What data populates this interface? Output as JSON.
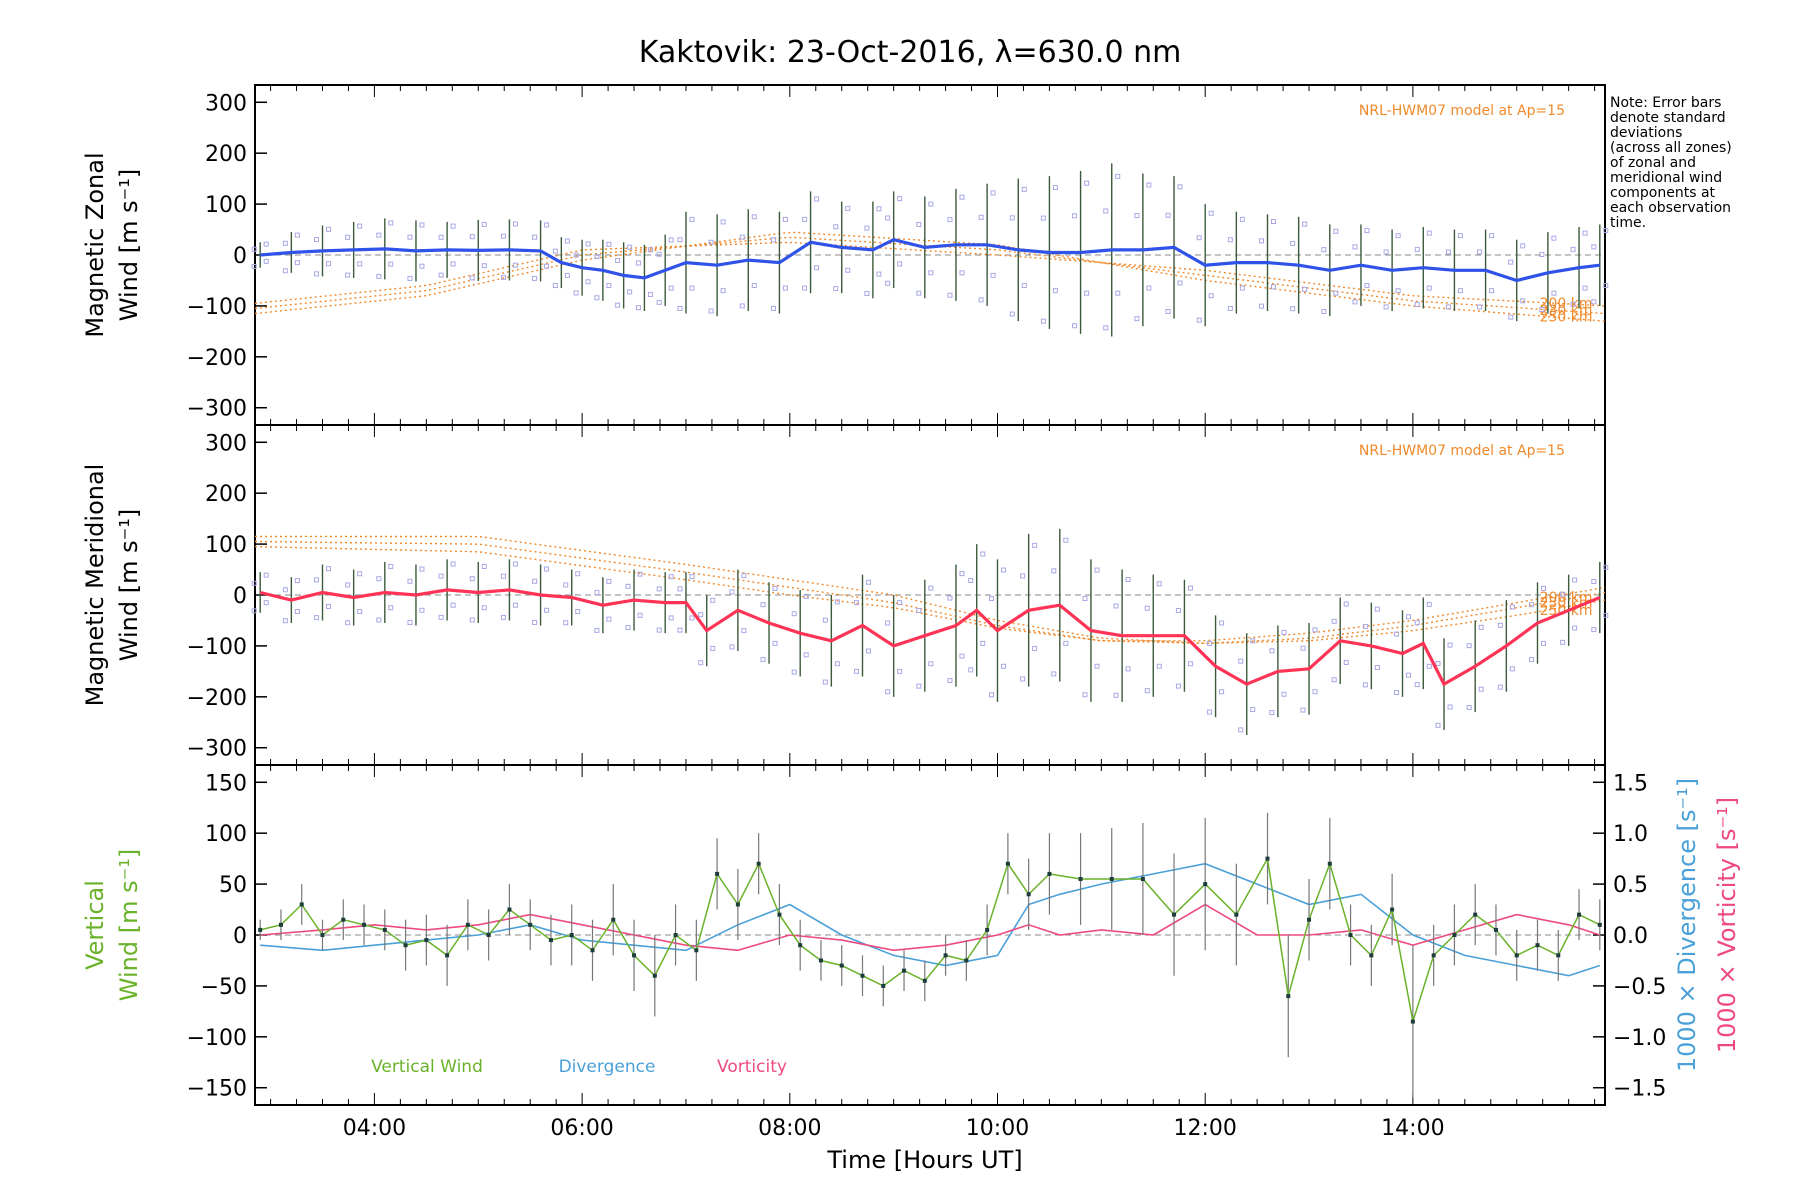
{
  "title": "Kaktovik: 23-Oct-2016, λ=630.0 nm",
  "note": [
    "Note: Error bars",
    "denote standard",
    "deviations",
    "(across all zones)",
    "of zonal and",
    "meridional wind",
    "components at",
    "each observation",
    "time."
  ],
  "colors": {
    "zonal": "#2f52e8",
    "zonal_light": "#4aa0e6",
    "meridional": "#ff3355",
    "model": "#f08a2c",
    "scatter": "#a8a8e8",
    "vertical": "#6ab22a",
    "divergence": "#4aa0d8",
    "vorticity": "#ee4a80",
    "errorbar": "#777777"
  },
  "chart_data": [
    {
      "type": "line",
      "panel": "zonal",
      "ylabel_lines": [
        "Magnetic Zonal",
        "Wind [m s⁻¹]"
      ],
      "annotation": "NRL-HWM07 model at Ap=15",
      "model_height_labels": [
        "250 km",
        "230 km",
        "200 km"
      ],
      "x_range": [
        2.85,
        15.85
      ],
      "ylim": [
        -330,
        330
      ],
      "yticks": [
        300,
        200,
        100,
        0,
        -100,
        -200,
        -300
      ],
      "series": [
        {
          "role": "measured",
          "x": [
            2.9,
            3.2,
            3.5,
            3.8,
            4.1,
            4.4,
            4.7,
            5.0,
            5.3,
            5.6,
            5.8,
            6.0,
            6.2,
            6.4,
            6.6,
            6.8,
            7.0,
            7.3,
            7.6,
            7.9,
            8.2,
            8.5,
            8.8,
            9.0,
            9.3,
            9.6,
            9.9,
            10.2,
            10.5,
            10.8,
            11.1,
            11.4,
            11.7,
            12.0,
            12.3,
            12.6,
            12.9,
            13.2,
            13.5,
            13.8,
            14.1,
            14.4,
            14.7,
            15.0,
            15.3,
            15.6,
            15.8
          ],
          "y": [
            0,
            5,
            8,
            10,
            12,
            8,
            10,
            9,
            10,
            8,
            -15,
            -25,
            -30,
            -40,
            -45,
            -30,
            -15,
            -20,
            -10,
            -15,
            25,
            15,
            10,
            30,
            15,
            20,
            20,
            10,
            5,
            5,
            10,
            10,
            15,
            -20,
            -15,
            -15,
            -20,
            -30,
            -20,
            -30,
            -25,
            -30,
            -30,
            -50,
            -35,
            -25,
            -20
          ],
          "err": [
            25,
            40,
            50,
            55,
            60,
            60,
            55,
            60,
            60,
            60,
            50,
            55,
            60,
            65,
            65,
            70,
            100,
            100,
            100,
            100,
            100,
            90,
            95,
            95,
            100,
            110,
            120,
            140,
            150,
            160,
            170,
            150,
            140,
            120,
            100,
            95,
            95,
            90,
            80,
            80,
            80,
            80,
            80,
            80,
            80,
            80,
            80
          ]
        }
      ],
      "model": [
        {
          "x": [
            2.85,
            4.5,
            6.0,
            8.0,
            10.0,
            12.0,
            14.0,
            15.85
          ],
          "y": [
            -115,
            -80,
            -10,
            45,
            20,
            -50,
            -100,
            -130
          ]
        },
        {
          "x": [
            2.85,
            4.5,
            6.0,
            8.0,
            10.0,
            12.0,
            14.0,
            15.85
          ],
          "y": [
            -105,
            -70,
            0,
            35,
            10,
            -40,
            -90,
            -115
          ]
        },
        {
          "x": [
            2.85,
            4.5,
            6.0,
            8.0,
            10.0,
            12.0,
            14.0,
            15.85
          ],
          "y": [
            -95,
            -60,
            10,
            25,
            0,
            -30,
            -80,
            -100
          ]
        }
      ]
    },
    {
      "type": "line",
      "panel": "meridional",
      "ylabel_lines": [
        "Magnetic Meridional",
        "Wind [m s⁻¹]"
      ],
      "annotation": "NRL-HWM07 model at Ap=15",
      "model_height_labels": [
        "250 km",
        "230 km",
        "200 km"
      ],
      "x_range": [
        2.85,
        15.85
      ],
      "ylim": [
        -330,
        330
      ],
      "yticks": [
        300,
        200,
        100,
        0,
        -100,
        -200,
        -300
      ],
      "series": [
        {
          "role": "measured",
          "x": [
            2.9,
            3.2,
            3.5,
            3.8,
            4.1,
            4.4,
            4.7,
            5.0,
            5.3,
            5.6,
            5.9,
            6.2,
            6.5,
            6.8,
            7.0,
            7.2,
            7.5,
            7.8,
            8.1,
            8.4,
            8.7,
            9.0,
            9.3,
            9.6,
            9.8,
            10.0,
            10.3,
            10.6,
            10.9,
            11.2,
            11.5,
            11.8,
            12.1,
            12.4,
            12.7,
            13.0,
            13.3,
            13.6,
            13.9,
            14.1,
            14.3,
            14.6,
            14.9,
            15.2,
            15.5,
            15.8
          ],
          "y": [
            5,
            -10,
            5,
            -5,
            5,
            0,
            10,
            5,
            10,
            0,
            -5,
            -20,
            -10,
            -15,
            -15,
            -70,
            -30,
            -55,
            -75,
            -90,
            -60,
            -100,
            -80,
            -60,
            -30,
            -70,
            -30,
            -20,
            -70,
            -80,
            -80,
            -80,
            -140,
            -175,
            -150,
            -145,
            -90,
            -100,
            -115,
            -95,
            -175,
            -140,
            -100,
            -55,
            -30,
            -5
          ],
          "err": [
            40,
            45,
            55,
            55,
            60,
            60,
            60,
            60,
            60,
            60,
            55,
            55,
            60,
            60,
            60,
            70,
            80,
            80,
            85,
            90,
            100,
            100,
            110,
            120,
            130,
            140,
            150,
            150,
            140,
            130,
            120,
            110,
            100,
            100,
            90,
            90,
            85,
            85,
            85,
            90,
            90,
            90,
            90,
            80,
            70,
            70
          ]
        }
      ],
      "model": [
        {
          "x": [
            2.85,
            5.0,
            7.0,
            8.0,
            9.0,
            10.0,
            11.0,
            12.0,
            13.0,
            14.0,
            15.0,
            15.85
          ],
          "y": [
            115,
            115,
            60,
            30,
            0,
            -50,
            -85,
            -95,
            -90,
            -70,
            -40,
            -10
          ]
        },
        {
          "x": [
            2.85,
            5.0,
            7.0,
            8.0,
            9.0,
            10.0,
            11.0,
            12.0,
            13.0,
            14.0,
            15.0,
            15.85
          ],
          "y": [
            105,
            100,
            45,
            15,
            -15,
            -60,
            -90,
            -95,
            -85,
            -60,
            -25,
            5
          ]
        },
        {
          "x": [
            2.85,
            5.0,
            7.0,
            8.0,
            9.0,
            10.0,
            11.0,
            12.0,
            13.0,
            14.0,
            15.0,
            15.85
          ],
          "y": [
            95,
            85,
            30,
            0,
            -25,
            -65,
            -90,
            -90,
            -75,
            -50,
            -15,
            15
          ]
        }
      ]
    },
    {
      "type": "line",
      "panel": "vertical",
      "ylabel_lines": [
        "Vertical",
        "Wind [m s⁻¹]"
      ],
      "right_labels": [
        "1000 × Divergence [s⁻¹]",
        "1000 × Vorticity [s⁻¹]"
      ],
      "xlabel": "Time [Hours UT]",
      "x_range": [
        2.85,
        15.85
      ],
      "ylim": [
        -165,
        165
      ],
      "yticks": [
        150,
        100,
        50,
        0,
        -50,
        -100,
        -150
      ],
      "y2lim": [
        -1.65,
        1.65
      ],
      "y2ticks": [
        1.5,
        1.0,
        0.5,
        0.0,
        -0.5,
        -1.0,
        -1.5
      ],
      "xticks": [
        "04:00",
        "06:00",
        "08:00",
        "10:00",
        "12:00",
        "14:00"
      ],
      "xtick_values": [
        4,
        6,
        8,
        10,
        12,
        14
      ],
      "legend": [
        "Vertical Wind",
        "Divergence",
        "Vorticity"
      ],
      "series": [
        {
          "name": "Vertical Wind",
          "x": [
            2.9,
            3.1,
            3.3,
            3.5,
            3.7,
            3.9,
            4.1,
            4.3,
            4.5,
            4.7,
            4.9,
            5.1,
            5.3,
            5.5,
            5.7,
            5.9,
            6.1,
            6.3,
            6.5,
            6.7,
            6.9,
            7.1,
            7.3,
            7.5,
            7.7,
            7.9,
            8.1,
            8.3,
            8.5,
            8.7,
            8.9,
            9.1,
            9.3,
            9.5,
            9.7,
            9.9,
            10.1,
            10.3,
            10.5,
            10.8,
            11.1,
            11.4,
            11.7,
            12.0,
            12.3,
            12.6,
            12.8,
            13.0,
            13.2,
            13.4,
            13.6,
            13.8,
            14.0,
            14.2,
            14.4,
            14.6,
            14.8,
            15.0,
            15.2,
            15.4,
            15.6,
            15.8
          ],
          "y": [
            5,
            10,
            30,
            0,
            15,
            10,
            5,
            -10,
            -5,
            -20,
            10,
            0,
            25,
            10,
            -5,
            0,
            -15,
            15,
            -20,
            -40,
            0,
            -15,
            60,
            30,
            70,
            20,
            -10,
            -25,
            -30,
            -40,
            -50,
            -35,
            -45,
            -20,
            -25,
            5,
            70,
            40,
            60,
            55,
            55,
            55,
            20,
            50,
            20,
            75,
            -60,
            15,
            70,
            0,
            -20,
            25,
            -85,
            -20,
            0,
            20,
            5,
            -20,
            -10,
            -20,
            20,
            10
          ],
          "err": [
            10,
            15,
            20,
            15,
            20,
            20,
            20,
            25,
            25,
            30,
            25,
            25,
            25,
            25,
            25,
            30,
            30,
            35,
            35,
            40,
            30,
            30,
            35,
            35,
            30,
            30,
            25,
            20,
            20,
            20,
            20,
            20,
            20,
            20,
            20,
            25,
            30,
            35,
            40,
            45,
            50,
            55,
            60,
            65,
            50,
            45,
            60,
            40,
            45,
            30,
            30,
            35,
            75,
            30,
            30,
            30,
            25,
            25,
            25,
            25,
            25,
            25
          ]
        },
        {
          "name": "Divergence",
          "x": [
            2.9,
            3.5,
            4.0,
            4.5,
            5.0,
            5.5,
            6.0,
            6.5,
            7.0,
            7.5,
            8.0,
            8.5,
            9.0,
            9.5,
            10.0,
            10.3,
            10.6,
            11.0,
            11.5,
            12.0,
            12.5,
            13.0,
            13.5,
            14.0,
            14.5,
            15.0,
            15.5,
            15.8
          ],
          "y": [
            -0.1,
            -0.15,
            -0.1,
            -0.05,
            0.0,
            0.1,
            -0.05,
            -0.1,
            -0.15,
            0.1,
            0.3,
            0.0,
            -0.2,
            -0.3,
            -0.2,
            0.3,
            0.4,
            0.5,
            0.6,
            0.7,
            0.5,
            0.3,
            0.4,
            0.0,
            -0.2,
            -0.3,
            -0.4,
            -0.3
          ]
        },
        {
          "name": "Vorticity",
          "x": [
            2.9,
            3.5,
            4.0,
            4.5,
            5.0,
            5.5,
            6.0,
            6.5,
            7.0,
            7.5,
            8.0,
            8.5,
            9.0,
            9.5,
            10.0,
            10.3,
            10.6,
            11.0,
            11.5,
            12.0,
            12.5,
            13.0,
            13.5,
            14.0,
            14.5,
            15.0,
            15.5,
            15.8
          ],
          "y": [
            0.0,
            0.05,
            0.1,
            0.05,
            0.1,
            0.2,
            0.1,
            0.0,
            -0.1,
            -0.15,
            0.0,
            -0.05,
            -0.15,
            -0.1,
            0.0,
            0.1,
            0.0,
            0.05,
            0.0,
            0.3,
            0.0,
            0.0,
            0.05,
            -0.1,
            0.05,
            0.2,
            0.1,
            0.0
          ]
        }
      ]
    }
  ]
}
